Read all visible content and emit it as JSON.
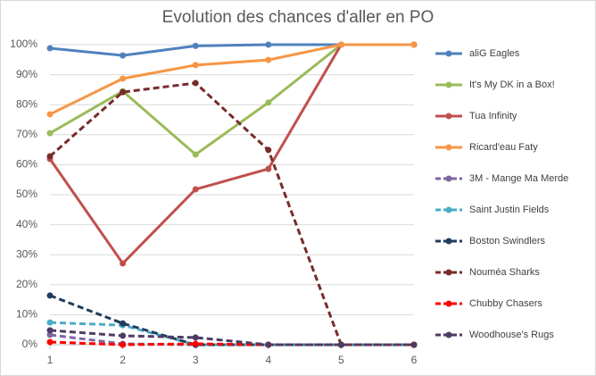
{
  "chart_data": {
    "type": "line",
    "title": "Evolution des chances d'aller en PO",
    "x": [
      1,
      2,
      3,
      4,
      5,
      6
    ],
    "xlim": [
      1,
      6
    ],
    "xticks": [
      1,
      2,
      3,
      4,
      5,
      6
    ],
    "ylim": [
      0,
      100
    ],
    "yticks": [
      {
        "value": 0,
        "label": "0%"
      },
      {
        "value": 10,
        "label": "10%"
      },
      {
        "value": 20,
        "label": "20%"
      },
      {
        "value": 30,
        "label": "30%"
      },
      {
        "value": 40,
        "label": "40%"
      },
      {
        "value": 50,
        "label": "50%"
      },
      {
        "value": 60,
        "label": "60%"
      },
      {
        "value": 70,
        "label": "70%"
      },
      {
        "value": 80,
        "label": "80%"
      },
      {
        "value": 90,
        "label": "90%"
      },
      {
        "value": 100,
        "label": "100%"
      }
    ],
    "grid": true,
    "legend": "right",
    "series": [
      {
        "name": "aliG Eagles",
        "color": "#4f81bd",
        "dashed": false,
        "values": [
          98.8,
          96.4,
          99.6,
          100,
          100,
          100
        ]
      },
      {
        "name": "It's My DK in a Box!",
        "color": "#9bbb59",
        "dashed": false,
        "values": [
          70.5,
          84.5,
          63.4,
          80.7,
          100,
          100
        ]
      },
      {
        "name": "Tua Infinity",
        "color": "#c0504d",
        "dashed": false,
        "values": [
          61.9,
          27.1,
          51.8,
          58.6,
          100,
          100
        ]
      },
      {
        "name": "Ricard'eau Faty",
        "color": "#f79646",
        "dashed": false,
        "values": [
          76.8,
          88.7,
          93.2,
          94.9,
          100,
          100
        ]
      },
      {
        "name": "3M - Mange Ma Merde",
        "color": "#8064a2",
        "dashed": true,
        "values": [
          3.3,
          0.3,
          0,
          0,
          0,
          0
        ]
      },
      {
        "name": "Saint Justin Fields",
        "color": "#4bacc6",
        "dashed": true,
        "values": [
          7.4,
          6.5,
          0,
          0,
          0,
          0
        ]
      },
      {
        "name": "Boston Swindlers",
        "color": "#1f3d5f",
        "dashed": true,
        "values": [
          16.4,
          7.1,
          0,
          0,
          0,
          0
        ]
      },
      {
        "name": "Nouméa Sharks",
        "color": "#772c2a",
        "dashed": true,
        "values": [
          62.8,
          84.2,
          87.2,
          64.9,
          0,
          0
        ]
      },
      {
        "name": "Chubby Chasers",
        "color": "#ff0000",
        "dashed": true,
        "values": [
          0.9,
          0,
          0.3,
          0,
          0,
          0
        ]
      },
      {
        "name": "Woodhouse's Rugs",
        "color": "#4e3b62",
        "dashed": true,
        "values": [
          4.8,
          3,
          2.4,
          0,
          0,
          0
        ]
      }
    ]
  }
}
